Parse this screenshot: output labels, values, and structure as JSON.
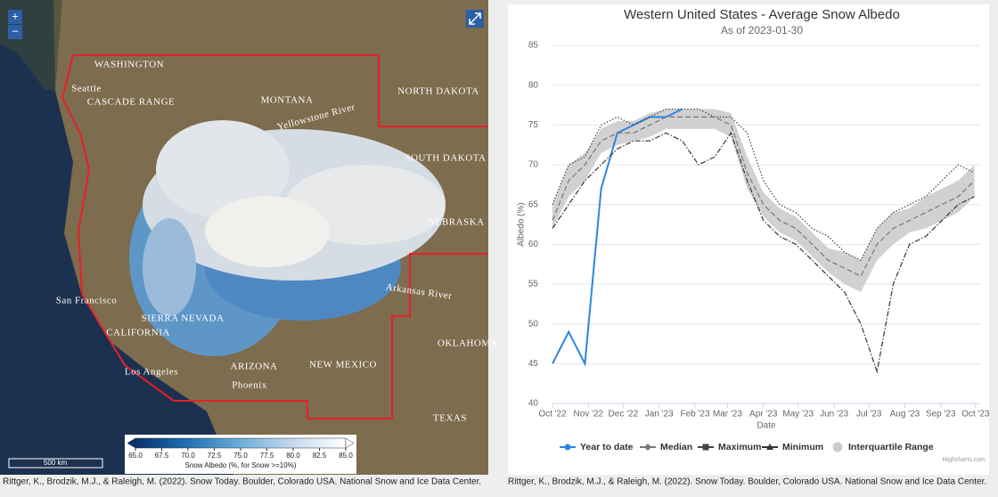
{
  "map": {
    "labels": [
      "WASHINGTON",
      "Seattle",
      "CASCADE RANGE",
      "MONTANA",
      "Yellowstone River",
      "NORTH DAKOTA",
      "SOUTH DAKOTA",
      "NEBRASKA",
      "San Francisco",
      "SIERRA NEVADA",
      "CALIFORNIA",
      "Los Angeles",
      "ARIZONA",
      "Phoenix",
      "NEW MEXICO",
      "Arkansas River",
      "OKLAHOMA",
      "TEXAS"
    ],
    "zoom_in": "+",
    "zoom_out": "−",
    "scale": "500 km",
    "colorbar": {
      "label": "Snow Albedo (%, for Snow >=10%)",
      "lim": [
        65,
        85
      ],
      "ticks": [
        {
          "value": 65,
          "label": "65.0"
        },
        67.5,
        {
          "value": 70,
          "label": "70.0"
        },
        72.5,
        {
          "value": 75,
          "label": "75.0"
        },
        77.5,
        {
          "value": 80,
          "label": "80.0"
        },
        82.5,
        {
          "value": 85,
          "label": "85.0"
        }
      ],
      "colors": [
        "#08306b",
        "#2171b5",
        "#6baed6",
        "#c6dbef",
        "#ffffff"
      ]
    },
    "credit": "Rittger, K., Brodzik, M.J., & Raleigh, M. (2022). Snow Today. Boulder, Colorado USA. National Snow and Ice Data Center."
  },
  "chart_data": {
    "type": "line",
    "title": "Western United States - Average Snow Albedo",
    "subtitle": "As of 2023-01-30",
    "y_label": "Albedo (%)",
    "x_label": "Date",
    "x": [
      0,
      14,
      28,
      42,
      56,
      70,
      84,
      98,
      112,
      126,
      140,
      154,
      168,
      182,
      196,
      210,
      224,
      238,
      252,
      266,
      280,
      294,
      308,
      322,
      336,
      350,
      364
    ],
    "xlim": [
      0,
      369
    ],
    "xticks": [
      {
        "value": 0,
        "label": "Oct '22"
      },
      {
        "value": 31,
        "label": "Nov '22"
      },
      {
        "value": 61,
        "label": "Dec '22"
      },
      {
        "value": 92,
        "label": "Jan '23"
      },
      {
        "value": 123,
        "label": "Feb '23"
      },
      {
        "value": 151,
        "label": "Mar '23"
      },
      {
        "value": 182,
        "label": "Apr '23"
      },
      {
        "value": 212,
        "label": "May '23"
      },
      {
        "value": 243,
        "label": "Jun '23"
      },
      {
        "value": 273,
        "label": "Jul '23"
      },
      {
        "value": 304,
        "label": "Aug '23"
      },
      {
        "value": 335,
        "label": "Sep '23"
      },
      {
        "value": 365,
        "label": "Oct '23"
      }
    ],
    "ylim": [
      40,
      85
    ],
    "yticks": [
      40,
      45,
      50,
      55,
      60,
      65,
      70,
      75,
      80,
      85
    ],
    "grid": true,
    "band": {
      "name": "Interquartile Range",
      "color": "#cccccc",
      "low": [
        62,
        66,
        68,
        71.5,
        72.5,
        73,
        73.5,
        74.5,
        74.5,
        74.5,
        74.5,
        73.5,
        67,
        63.5,
        61.5,
        60.5,
        58.5,
        56.5,
        55,
        54,
        58,
        60,
        61.5,
        62,
        63,
        64,
        66
      ],
      "high": [
        65,
        70,
        71.5,
        74.5,
        75.5,
        75.5,
        76.5,
        77,
        77,
        77,
        77,
        76.5,
        71,
        66.5,
        64.5,
        63.5,
        61.5,
        59.5,
        59,
        58,
        62,
        64,
        64.5,
        66,
        67,
        68,
        70
      ]
    },
    "series": [
      {
        "name": "Year to date",
        "color": "#2e86de",
        "line_style": "solid",
        "marker": "circle",
        "values": [
          45,
          49,
          45,
          67,
          74,
          75,
          76,
          76,
          77,
          null,
          null,
          null,
          null,
          null,
          null,
          null,
          null,
          null,
          null,
          null,
          null,
          null,
          null,
          null,
          null,
          null,
          null
        ]
      },
      {
        "name": "Median",
        "color": "#777777",
        "line_style": "dashed",
        "marker": "diamond",
        "values": [
          63,
          68,
          70,
          73,
          74,
          74,
          75,
          76,
          76,
          76,
          76,
          75,
          69,
          65,
          63,
          62,
          60,
          58,
          57,
          56,
          60,
          62,
          63,
          64,
          65,
          66,
          68
        ]
      },
      {
        "name": "Maximum",
        "color": "#444444",
        "line_style": "dotted",
        "marker": "square",
        "values": [
          65,
          70,
          71,
          75,
          76,
          75,
          76,
          77,
          77,
          77,
          76,
          76,
          74,
          68,
          65,
          64,
          62,
          61,
          59,
          58,
          62,
          64,
          65,
          66,
          68,
          70,
          69
        ]
      },
      {
        "name": "Minimum",
        "color": "#333333",
        "line_style": "dashdot",
        "marker": "triangle",
        "values": [
          62,
          65,
          68,
          70,
          72,
          73,
          73,
          74,
          73,
          70,
          71,
          74,
          68,
          63,
          61,
          60,
          58,
          56,
          54,
          50,
          44,
          55,
          60,
          61,
          63,
          65,
          66
        ]
      }
    ],
    "credits": "Highcharts.com",
    "credit": "Rittger, K., Brodzik, M.J., & Raleigh, M. (2022). Snow Today. Boulder, Colorado USA. National Snow and Ice Data Center."
  }
}
